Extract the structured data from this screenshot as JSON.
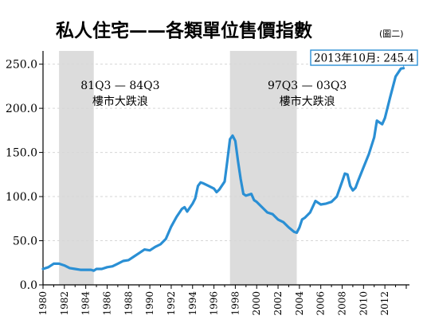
{
  "title": "私人住宅——各類單位售價指數",
  "title_note": "(圖二)",
  "chart_data": {
    "type": "line",
    "xlabel": "",
    "ylabel": "",
    "xlim": [
      1980,
      2014.3
    ],
    "ylim": [
      0,
      265
    ],
    "grid": true,
    "yticks": [
      {
        "value": 0,
        "label": "0.0"
      },
      {
        "value": 50,
        "label": "50.0"
      },
      {
        "value": 100,
        "label": "100.0"
      },
      {
        "value": 150,
        "label": "150.0"
      },
      {
        "value": 200,
        "label": "200.0"
      },
      {
        "value": 250,
        "label": "250.0"
      }
    ],
    "xticks": [
      "1980",
      "1982",
      "1984",
      "1986",
      "1988",
      "1990",
      "1992",
      "1994",
      "1996",
      "1998",
      "2000",
      "2002",
      "2004",
      "2006",
      "2008",
      "2010",
      "2012"
    ],
    "line_color": "#2a8fd4",
    "shade_color": "#dcdcdc",
    "shaded_periods": [
      {
        "start": 1981.5,
        "end": 1984.75,
        "label_line1": "81Q3 — 84Q3",
        "label_line2": "樓市大跌浪"
      },
      {
        "start": 1997.5,
        "end": 2003.75,
        "label_line1": "97Q3 — 03Q3",
        "label_line2": "樓市大跌浪"
      }
    ],
    "callout": {
      "text": "2013年10月: 245.4",
      "x": 2013.75,
      "y": 245.4
    },
    "series": [
      {
        "points": [
          [
            1980.0,
            18
          ],
          [
            1980.5,
            20
          ],
          [
            1981.0,
            24
          ],
          [
            1981.5,
            24
          ],
          [
            1982.0,
            22
          ],
          [
            1982.5,
            19
          ],
          [
            1983.0,
            18
          ],
          [
            1983.5,
            17
          ],
          [
            1984.0,
            17
          ],
          [
            1984.5,
            17
          ],
          [
            1984.75,
            16
          ],
          [
            1985.0,
            18
          ],
          [
            1985.5,
            18
          ],
          [
            1986.0,
            20
          ],
          [
            1986.5,
            21
          ],
          [
            1987.0,
            24
          ],
          [
            1987.5,
            27
          ],
          [
            1988.0,
            28
          ],
          [
            1988.5,
            32
          ],
          [
            1989.0,
            36
          ],
          [
            1989.5,
            40
          ],
          [
            1990.0,
            39
          ],
          [
            1990.5,
            43
          ],
          [
            1991.0,
            46
          ],
          [
            1991.5,
            52
          ],
          [
            1992.0,
            66
          ],
          [
            1992.5,
            77
          ],
          [
            1993.0,
            86
          ],
          [
            1993.25,
            88
          ],
          [
            1993.5,
            83
          ],
          [
            1994.0,
            92
          ],
          [
            1994.25,
            98
          ],
          [
            1994.5,
            112
          ],
          [
            1994.75,
            116
          ],
          [
            1995.0,
            115
          ],
          [
            1995.5,
            112
          ],
          [
            1996.0,
            109
          ],
          [
            1996.25,
            105
          ],
          [
            1996.5,
            108
          ],
          [
            1997.0,
            117
          ],
          [
            1997.25,
            140
          ],
          [
            1997.5,
            165
          ],
          [
            1997.75,
            169
          ],
          [
            1998.0,
            163
          ],
          [
            1998.25,
            140
          ],
          [
            1998.5,
            120
          ],
          [
            1998.75,
            103
          ],
          [
            1999.0,
            101
          ],
          [
            1999.5,
            103
          ],
          [
            1999.75,
            96
          ],
          [
            2000.0,
            94
          ],
          [
            2000.5,
            88
          ],
          [
            2001.0,
            82
          ],
          [
            2001.5,
            80
          ],
          [
            2002.0,
            74
          ],
          [
            2002.5,
            71
          ],
          [
            2003.0,
            65
          ],
          [
            2003.5,
            60
          ],
          [
            2003.75,
            59
          ],
          [
            2004.0,
            65
          ],
          [
            2004.25,
            74
          ],
          [
            2004.5,
            76
          ],
          [
            2005.0,
            82
          ],
          [
            2005.5,
            95
          ],
          [
            2006.0,
            91
          ],
          [
            2006.5,
            92
          ],
          [
            2007.0,
            94
          ],
          [
            2007.5,
            100
          ],
          [
            2008.0,
            117
          ],
          [
            2008.25,
            126
          ],
          [
            2008.5,
            125
          ],
          [
            2008.75,
            112
          ],
          [
            2009.0,
            107
          ],
          [
            2009.25,
            110
          ],
          [
            2009.5,
            118
          ],
          [
            2010.0,
            133
          ],
          [
            2010.5,
            148
          ],
          [
            2011.0,
            167
          ],
          [
            2011.25,
            186
          ],
          [
            2011.5,
            184
          ],
          [
            2011.75,
            182
          ],
          [
            2012.0,
            189
          ],
          [
            2012.5,
            213
          ],
          [
            2013.0,
            236
          ],
          [
            2013.5,
            245
          ],
          [
            2013.75,
            245.4
          ]
        ]
      }
    ]
  }
}
